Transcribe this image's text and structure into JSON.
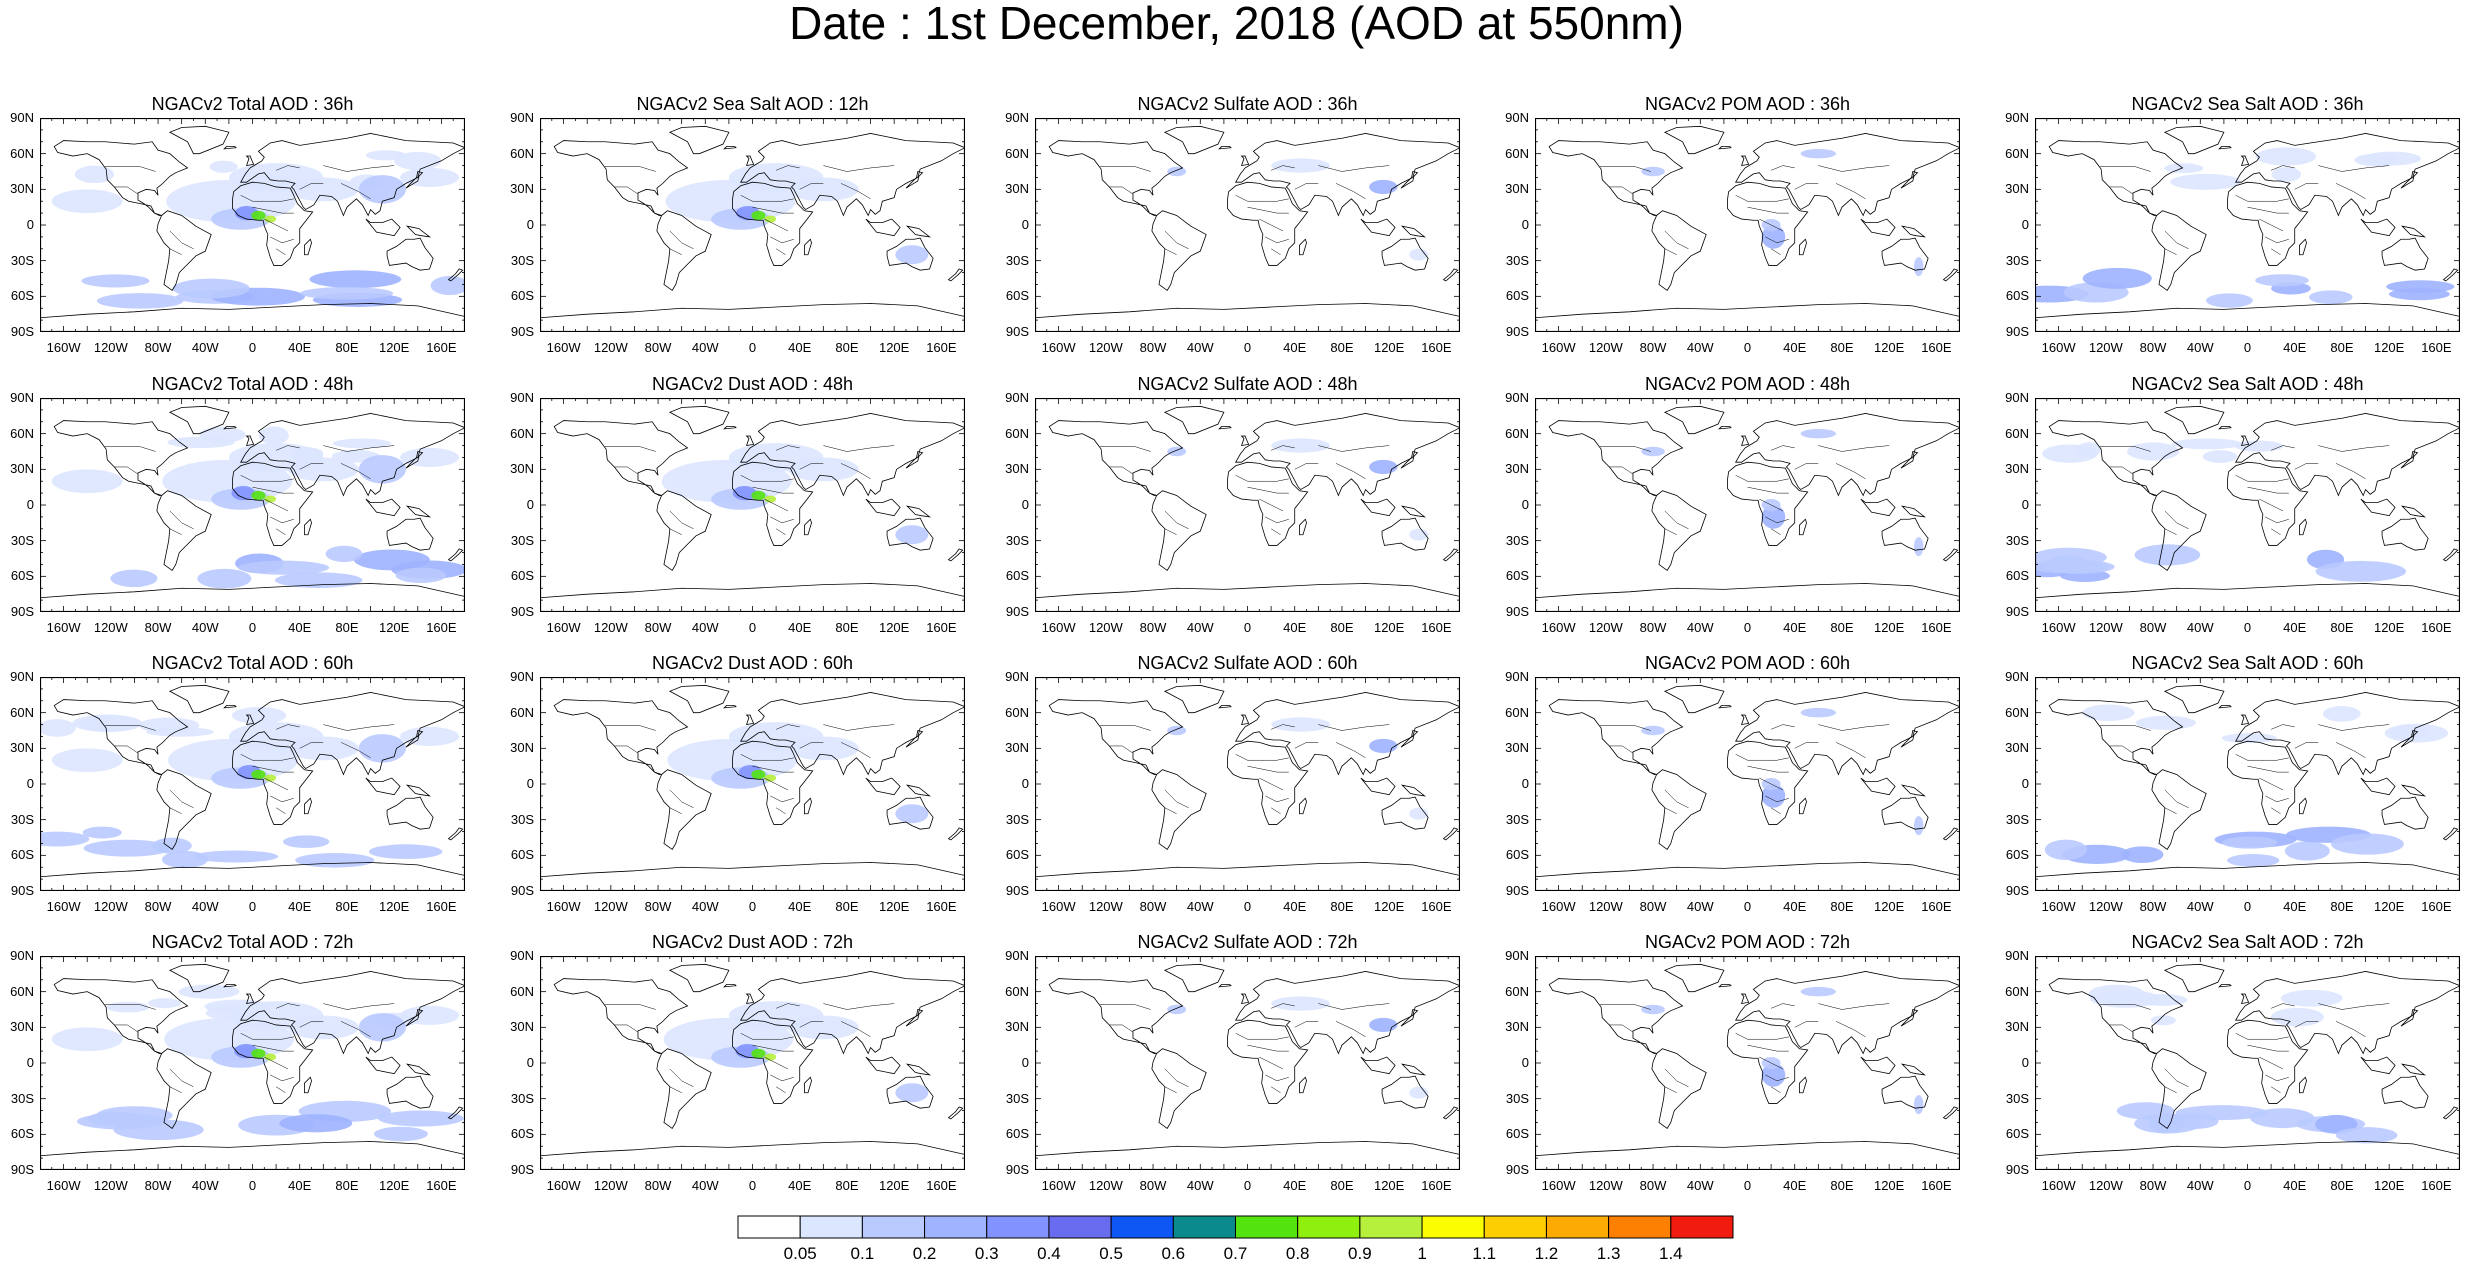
{
  "title": "Date : 1st December, 2018 (AOD at 550nm)",
  "rows": [
    [
      "NGACv2 Total AOD : 36h",
      "NGACv2 Sea Salt  AOD : 12h",
      "NGACv2 Sulfate AOD : 36h",
      "NGACv2 POM AOD : 36h",
      "NGACv2 Sea Salt AOD : 36h"
    ],
    [
      "NGACv2 Total AOD : 48h",
      "NGACv2 Dust AOD : 48h",
      "NGACv2 Sulfate AOD : 48h",
      "NGACv2 POM AOD : 48h",
      "NGACv2 Sea Salt AOD : 48h"
    ],
    [
      "NGACv2 Total AOD : 60h",
      "NGACv2 Dust AOD : 60h",
      "NGACv2 Sulfate AOD : 60h",
      "NGACv2 POM AOD : 60h",
      "NGACv2 Sea Salt AOD : 60h"
    ],
    [
      "NGACv2 Total AOD : 72h",
      "NGACv2 Dust AOD : 72h",
      "NGACv2 Sulfate AOD : 72h",
      "NGACv2 POM AOD : 72h",
      "NGACv2 Sea Salt  AOD : 72h"
    ]
  ],
  "lat_ticks": [
    "90N",
    "60N",
    "30N",
    "0",
    "30S",
    "60S",
    "90S"
  ],
  "lon_ticks": [
    "160W",
    "120W",
    "80W",
    "40W",
    "0",
    "40E",
    "80E",
    "120E",
    "160E"
  ],
  "colorbar": {
    "labels": [
      "0.05",
      "0.1",
      "0.2",
      "0.3",
      "0.4",
      "0.5",
      "0.6",
      "0.7",
      "0.8",
      "0.9",
      "1",
      "1.1",
      "1.2",
      "1.3",
      "1.4"
    ],
    "colors": [
      "#ffffff",
      "#dbe6ff",
      "#b9caff",
      "#9fb3ff",
      "#8293ff",
      "#6a6cf0",
      "#0f57f5",
      "#0a8a8a",
      "#53e30f",
      "#8ff00f",
      "#b6f03c",
      "#fdfd02",
      "#fdcf02",
      "#fdab02",
      "#fd8002",
      "#f21b0f"
    ]
  }
}
